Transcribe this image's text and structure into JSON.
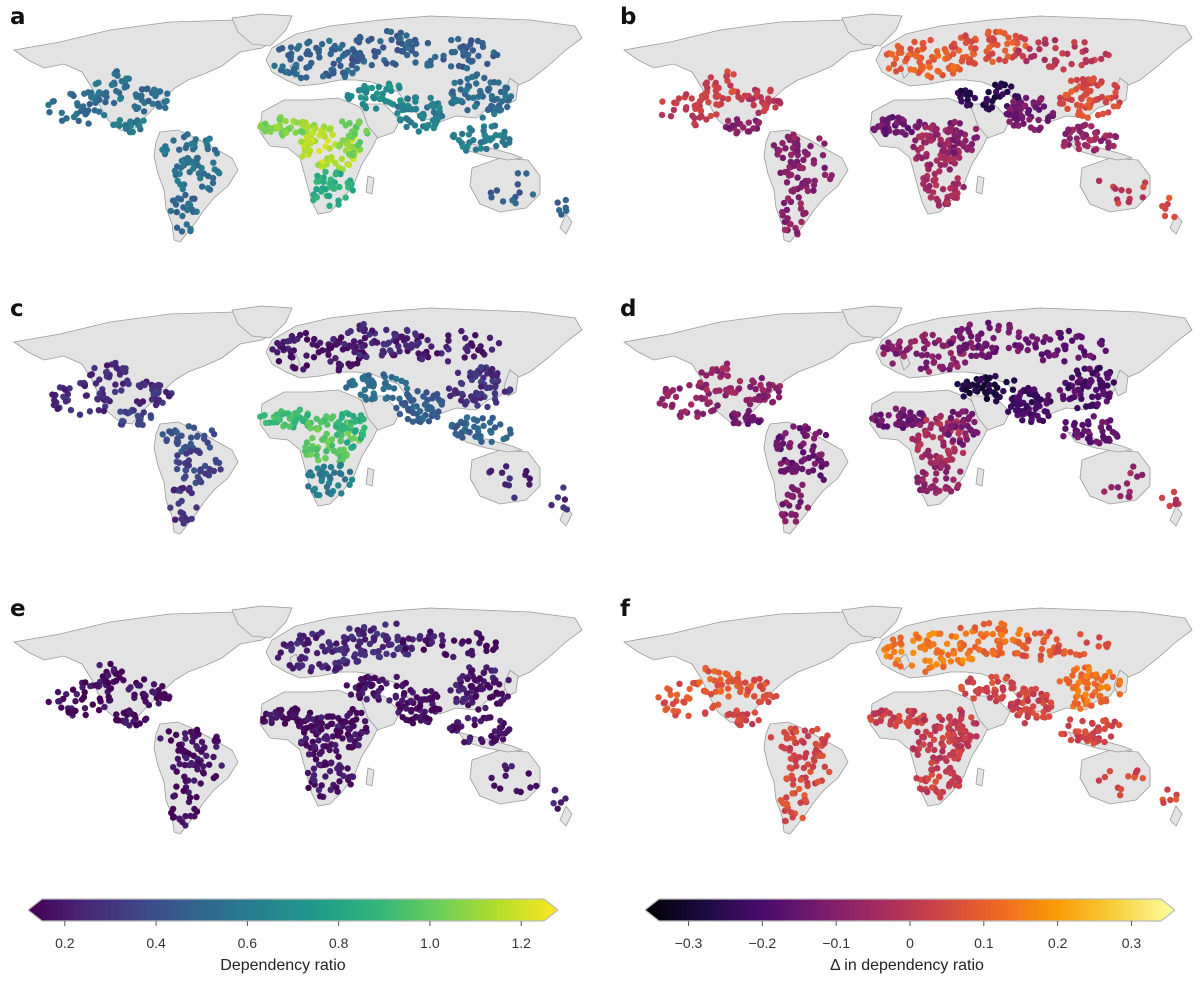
{
  "figure": {
    "panels": [
      {
        "label": "a",
        "variable": "dependency_ratio",
        "description_hidden": false
      },
      {
        "label": "b",
        "variable": "delta_dependency_ratio"
      },
      {
        "label": "c",
        "variable": "dependency_ratio"
      },
      {
        "label": "d",
        "variable": "delta_dependency_ratio"
      },
      {
        "label": "e",
        "variable": "dependency_ratio"
      },
      {
        "label": "f",
        "variable": "delta_dependency_ratio"
      }
    ]
  },
  "colorbars": {
    "left": {
      "title": "Dependency ratio",
      "colormap": "viridis",
      "extend": "both",
      "range": [
        0.15,
        1.25
      ],
      "ticks": [
        "0.2",
        "0.4",
        "0.6",
        "0.8",
        "1.0",
        "1.2"
      ],
      "tick_values": [
        0.2,
        0.4,
        0.6,
        0.8,
        1.0,
        1.2
      ]
    },
    "right": {
      "title": "Δ in dependency ratio",
      "colormap": "inferno",
      "extend": "both",
      "range": [
        -0.34,
        0.34
      ],
      "ticks": [
        "−0.3",
        "−0.2",
        "−0.1",
        "0",
        "0.1",
        "0.2",
        "0.3"
      ],
      "tick_values": [
        -0.3,
        -0.2,
        -0.1,
        0,
        0.1,
        0.2,
        0.3
      ]
    }
  },
  "colors": {
    "land": "#e3e3e3",
    "border": "#9a9a9a",
    "viridis": [
      "#440154",
      "#482878",
      "#3e4989",
      "#31688e",
      "#26828e",
      "#1f9e89",
      "#35b779",
      "#6ece58",
      "#b5de2b",
      "#fde725"
    ],
    "inferno": [
      "#000004",
      "#1b0c41",
      "#4a0c6b",
      "#781c6d",
      "#a52c60",
      "#cf4446",
      "#ed6925",
      "#fb9b06",
      "#f7d13d",
      "#fcffa4"
    ]
  }
}
